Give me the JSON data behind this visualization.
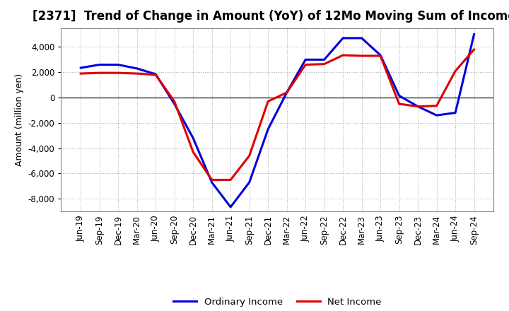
{
  "title": "[2371]  Trend of Change in Amount (YoY) of 12Mo Moving Sum of Incomes",
  "ylabel": "Amount (million yen)",
  "x_labels": [
    "Jun-19",
    "Sep-19",
    "Dec-19",
    "Mar-20",
    "Jun-20",
    "Sep-20",
    "Dec-20",
    "Mar-21",
    "Jun-21",
    "Sep-21",
    "Dec-21",
    "Mar-22",
    "Jun-22",
    "Sep-22",
    "Dec-22",
    "Mar-23",
    "Jun-23",
    "Sep-23",
    "Dec-23",
    "Mar-24",
    "Jun-24",
    "Sep-24"
  ],
  "ordinary_income": [
    2350,
    2600,
    2600,
    2300,
    1850,
    -500,
    -3200,
    -6700,
    -8650,
    -6700,
    -2500,
    400,
    3000,
    3000,
    4700,
    4700,
    3350,
    150,
    -700,
    -1400,
    -1200,
    5000
  ],
  "net_income": [
    1900,
    1950,
    1950,
    1900,
    1800,
    -300,
    -4300,
    -6500,
    -6500,
    -4600,
    -300,
    400,
    2600,
    2650,
    3350,
    3300,
    3300,
    -500,
    -700,
    -650,
    2100,
    3800
  ],
  "ordinary_income_color": "#0000dd",
  "net_income_color": "#dd0000",
  "background_color": "#ffffff",
  "plot_background": "#ffffff",
  "grid_color": "#aaaaaa",
  "ylim": [
    -9000,
    5500
  ],
  "yticks": [
    -8000,
    -6000,
    -4000,
    -2000,
    0,
    2000,
    4000
  ],
  "legend_labels": [
    "Ordinary Income",
    "Net Income"
  ],
  "line_width": 2.2,
  "title_fontsize": 12,
  "tick_fontsize": 8.5,
  "ylabel_fontsize": 9
}
